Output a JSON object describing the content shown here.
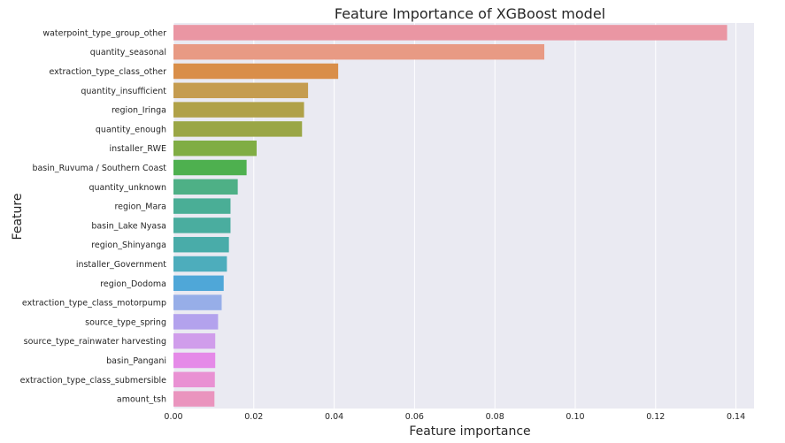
{
  "chart_data": {
    "type": "bar",
    "orientation": "horizontal",
    "title": "Feature Importance of XGBoost model",
    "xlabel": "Feature importance",
    "ylabel": "Feature",
    "xlim": [
      0,
      0.1445
    ],
    "xticks": [
      "0.00",
      "0.02",
      "0.04",
      "0.06",
      "0.08",
      "0.10",
      "0.12",
      "0.14"
    ],
    "grid": true,
    "background": "#eaeaf2",
    "categories": [
      "waterpoint_type_group_other",
      "quantity_seasonal",
      "extraction_type_class_other",
      "quantity_insufficient",
      "region_Iringa",
      "quantity_enough",
      "installer_RWE",
      "basin_Ruvuma / Southern Coast",
      "quantity_unknown",
      "region_Mara",
      "basin_Lake Nyasa",
      "region_Shinyanga",
      "installer_Government",
      "region_Dodoma",
      "extraction_type_class_motorpump",
      "source_type_spring",
      "source_type_rainwater harvesting",
      "basin_Pangani",
      "extraction_type_class_submersible",
      "amount_tsh"
    ],
    "values": [
      0.1378,
      0.0923,
      0.041,
      0.0335,
      0.0325,
      0.032,
      0.0207,
      0.0182,
      0.016,
      0.0142,
      0.0142,
      0.0138,
      0.0133,
      0.0125,
      0.012,
      0.0111,
      0.0104,
      0.0104,
      0.0103,
      0.0102
    ],
    "colors": [
      "#ea96a3",
      "#e89a84",
      "#d98e49",
      "#c59c50",
      "#b0a148",
      "#9aa646",
      "#80ad44",
      "#4eb04f",
      "#4eb086",
      "#4aae96",
      "#4aad9f",
      "#49aca9",
      "#4dadbc",
      "#4fa7d8",
      "#97aee8",
      "#b3a2ed",
      "#d09deb",
      "#e58ae8",
      "#e991d3",
      "#ea94be"
    ]
  }
}
